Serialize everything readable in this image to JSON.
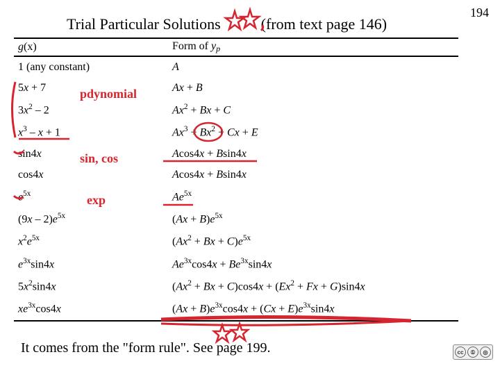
{
  "page_number": "194",
  "heading_left": "Trial Particular Solutions",
  "heading_right": "(from text page 146)",
  "header": {
    "col1_g": "g",
    "col1_x": "(x)",
    "col2_label": "Form of ",
    "col2_y": "y",
    "col2_p": "p"
  },
  "rows": [
    {
      "gx": "<span class='roman'>1 (any constant)</span>",
      "yp": "A"
    },
    {
      "gx": "<span class='roman'>5</span>x <span class='roman'>+ 7</span>",
      "yp": "Ax <span class='roman'>+ </span>B"
    },
    {
      "gx": "<span class='roman'>3</span>x<sup>2</sup> <span class='roman'>– 2</span>",
      "yp": "Ax<sup>2</sup> <span class='roman'>+ </span>Bx <span class='roman'>+ </span>C"
    },
    {
      "gx": "x<sup>3</sup> <span class='roman'>– </span>x <span class='roman'>+ 1</span>",
      "yp": "Ax<sup>3</sup> <span class='roman'>+ </span>Bx<sup>2</sup> <span class='roman'>+ </span>Cx <span class='roman'>+ </span>E"
    },
    {
      "gx": "<span class='roman'>sin4</span>x",
      "yp": "A<span class='roman'>cos4</span>x <span class='roman'>+ </span>B<span class='roman'>sin4</span>x"
    },
    {
      "gx": "<span class='roman'>cos4</span>x",
      "yp": "A<span class='roman'>cos4</span>x <span class='roman'>+ </span>B<span class='roman'>sin4</span>x"
    },
    {
      "gx": "e<sup>5x</sup>",
      "yp": "Ae<sup>5x</sup>"
    },
    {
      "gx": "<span class='roman'>(9</span>x <span class='roman'>– 2)</span>e<sup>5x</sup>",
      "yp": "<span class='roman'>(</span>Ax <span class='roman'>+ </span>B<span class='roman'>)</span>e<sup>5x</sup>"
    },
    {
      "gx": "x<sup>2</sup>e<sup>5x</sup>",
      "yp": "<span class='roman'>(</span>Ax<sup>2</sup> <span class='roman'>+ </span>Bx <span class='roman'>+ </span>C<span class='roman'>)</span>e<sup>5x</sup>"
    },
    {
      "gx": "e<sup>3x</sup><span class='roman'>sin4</span>x",
      "yp": "Ae<sup>3x</sup><span class='roman'>cos4</span>x <span class='roman'>+ </span>Be<sup>3x</sup><span class='roman'>sin4</span>x"
    },
    {
      "gx": "<span class='roman'>5</span>x<sup>2</sup><span class='roman'>sin4</span>x",
      "yp": "<span class='roman'>(</span>Ax<sup>2</sup> <span class='roman'>+ </span>Bx <span class='roman'>+ </span>C<span class='roman'>)cos4</span>x <span class='roman'>+ (</span>Ex<sup>2</sup> <span class='roman'>+ </span>Fx <span class='roman'>+ </span>G<span class='roman'>)sin4</span>x"
    },
    {
      "gx": "xe<sup>3x</sup><span class='roman'>cos4</span>x",
      "yp": "<span class='roman'>(</span>Ax <span class='roman'>+ </span>B<span class='roman'>)</span>e<sup>3x</sup><span class='roman'>cos4</span>x <span class='roman'>+ (</span>Cx <span class='roman'>+ </span>E<span class='roman'>)</span>e<sup>3x</sup><span class='roman'>sin4</span>x"
    }
  ],
  "annotations": {
    "polynomial": "pdynomial",
    "sincos": "sin, cos",
    "exp": "exp"
  },
  "footer": "It comes from the \"form rule\". See page 199.",
  "colors": {
    "red": "#d6252e",
    "black": "#000000",
    "bg": "#ffffff"
  }
}
